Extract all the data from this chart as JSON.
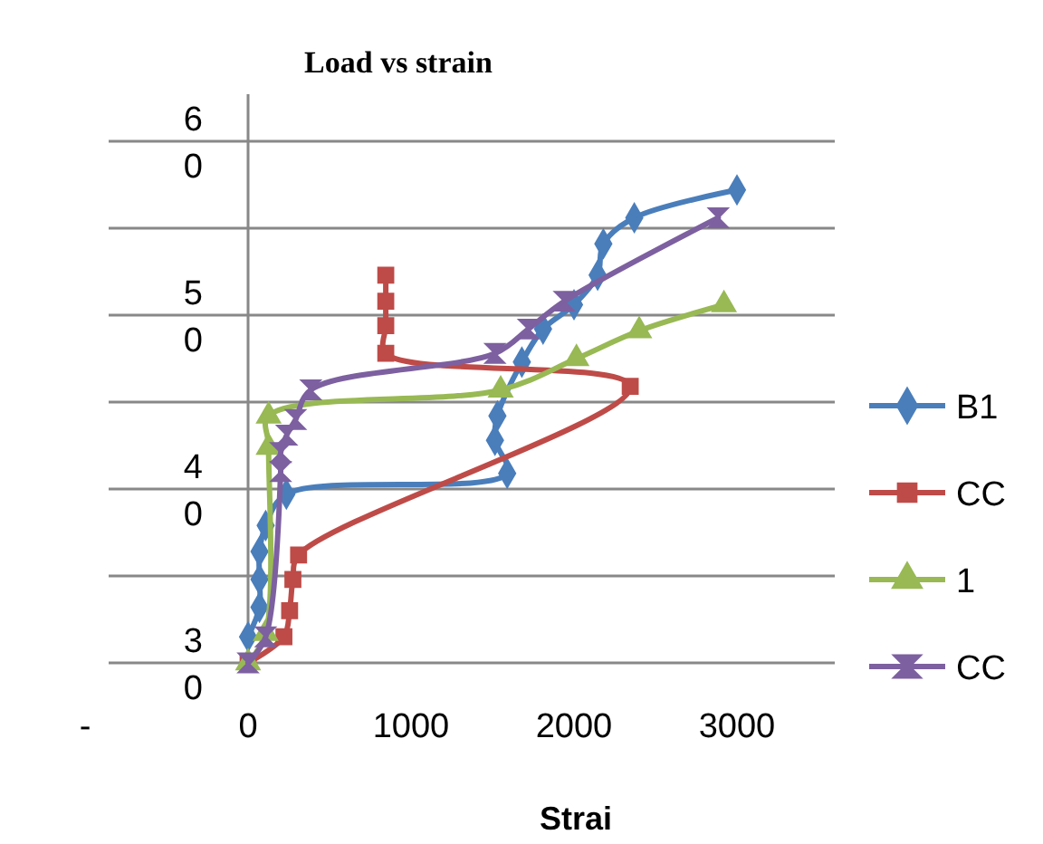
{
  "chart_data": {
    "type": "line",
    "title": "Load vs strain",
    "xlabel": "Strai",
    "xlim": [
      -1000,
      3600
    ],
    "xticks": [
      {
        "value": -1000,
        "label": "-"
      },
      0,
      1000,
      2000,
      3000
    ],
    "ylim": [
      30,
      60
    ],
    "yticks": [
      30,
      {
        "value": 35,
        "label": null
      },
      40,
      {
        "value": 45,
        "label": null
      },
      50,
      {
        "value": 55,
        "label": null
      },
      60
    ],
    "grid": "y",
    "legend": "right",
    "line_style": "solid",
    "series": [
      {
        "name": "B1",
        "color": "#4a7ebb",
        "marker": "diamond",
        "x": [
          0,
          70,
          70,
          70,
          108,
          235,
          1590,
          1515,
          1530,
          1680,
          1810,
          2000,
          2145,
          2180,
          2370,
          3000
        ],
        "values": [
          31.5,
          33.2,
          34.8,
          36.4,
          37.9,
          39.7,
          40.9,
          42.8,
          44.2,
          47.3,
          49.2,
          50.6,
          52.3,
          54.1,
          55.6,
          57.2
        ]
      },
      {
        "name": "CC",
        "color": "#be4b48",
        "marker": "square",
        "x": [
          0,
          220,
          255,
          275,
          310,
          2345,
          845,
          845,
          845,
          845
        ],
        "values": [
          30,
          31.5,
          33,
          34.8,
          36.2,
          45.9,
          47.8,
          49.4,
          50.8,
          52.3
        ]
      },
      {
        "name": "1",
        "color": "#98b954",
        "marker": "triangle",
        "x": [
          0,
          108,
          126,
          126,
          1550,
          2015,
          2400,
          2920
        ],
        "values": [
          30,
          31.7,
          42.4,
          44.2,
          45.7,
          47.5,
          49.1,
          50.6
        ]
      },
      {
        "name": "CC",
        "color": "#7d60a0",
        "marker": "star",
        "x": [
          0,
          108,
          200,
          200,
          237,
          292,
          385,
          1515,
          1720,
          1940,
          2885
        ],
        "values": [
          30,
          31.5,
          41,
          42.1,
          43.1,
          44,
          45.7,
          47.8,
          49.2,
          50.8,
          55.6
        ]
      }
    ]
  }
}
